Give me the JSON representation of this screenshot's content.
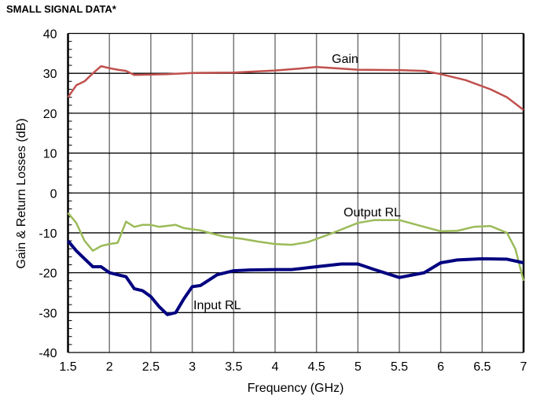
{
  "chart_data": {
    "type": "line",
    "title": "SMALL SIGNAL DATA*",
    "xlabel": "Frequency (GHz)",
    "ylabel": "Gain & Return Losses (dB)",
    "xlim": [
      1.5,
      7
    ],
    "ylim": [
      -40,
      40
    ],
    "xticks": [
      "1.5",
      "2",
      "2.5",
      "3",
      "3.5",
      "4",
      "4.5",
      "5",
      "5.5",
      "6",
      "6.5",
      "7"
    ],
    "yticks": [
      "40",
      "30",
      "20",
      "10",
      "0",
      "-10",
      "-20",
      "-30",
      "-40"
    ],
    "grid": true,
    "series": [
      {
        "name": "Gain",
        "color": "#c0504d",
        "x": [
          1.5,
          1.6,
          1.7,
          1.8,
          1.9,
          2.0,
          2.1,
          2.2,
          2.3,
          2.5,
          2.7,
          3.0,
          3.5,
          4.0,
          4.3,
          4.5,
          5.0,
          5.5,
          5.8,
          6.0,
          6.3,
          6.6,
          6.8,
          7.0
        ],
        "y": [
          24,
          27,
          28,
          30,
          31.8,
          31.3,
          30.9,
          30.6,
          29.6,
          29.7,
          29.8,
          30.1,
          30.2,
          30.7,
          31.2,
          31.6,
          30.9,
          30.8,
          30.6,
          29.8,
          28.3,
          26,
          24,
          20.8
        ]
      },
      {
        "name": "Output RL",
        "color": "#9bbb59",
        "x": [
          1.5,
          1.6,
          1.7,
          1.8,
          1.9,
          2.0,
          2.1,
          2.2,
          2.3,
          2.4,
          2.5,
          2.6,
          2.8,
          2.9,
          3.1,
          3.3,
          3.4,
          3.6,
          3.8,
          4.0,
          4.2,
          4.4,
          4.7,
          5.0,
          5.2,
          5.5,
          5.8,
          6.0,
          6.2,
          6.4,
          6.6,
          6.8,
          6.9,
          7.0
        ],
        "y": [
          -5,
          -7.5,
          -12,
          -14.5,
          -13.3,
          -12.8,
          -12.5,
          -7.2,
          -8.5,
          -8,
          -8,
          -8.5,
          -8,
          -8.8,
          -9.4,
          -10.5,
          -11,
          -11.5,
          -12.2,
          -12.8,
          -13,
          -12.3,
          -10,
          -7.5,
          -6.8,
          -6.8,
          -8.5,
          -9.6,
          -9.5,
          -8.5,
          -8.3,
          -10,
          -14,
          -22
        ]
      },
      {
        "name": "Input RL",
        "color": "#000080",
        "x": [
          1.5,
          1.6,
          1.7,
          1.8,
          1.9,
          2.0,
          2.1,
          2.2,
          2.3,
          2.4,
          2.5,
          2.6,
          2.7,
          2.8,
          2.9,
          3.0,
          3.1,
          3.3,
          3.5,
          3.7,
          4.0,
          4.2,
          4.5,
          4.8,
          5.0,
          5.2,
          5.5,
          5.8,
          6.0,
          6.2,
          6.5,
          6.8,
          7.0
        ],
        "y": [
          -12,
          -14.5,
          -16.5,
          -18.5,
          -18.5,
          -20,
          -20.5,
          -21,
          -24,
          -24.5,
          -26,
          -28.5,
          -30.5,
          -30,
          -26.5,
          -23.5,
          -23.2,
          -20.5,
          -19.5,
          -19.3,
          -19.2,
          -19.2,
          -18.5,
          -17.8,
          -17.8,
          -19.2,
          -21.2,
          -20,
          -17.5,
          -16.8,
          -16.5,
          -16.6,
          -17.5
        ]
      }
    ],
    "annotations": [
      "Gain",
      "Output RL",
      "Input RL"
    ]
  }
}
